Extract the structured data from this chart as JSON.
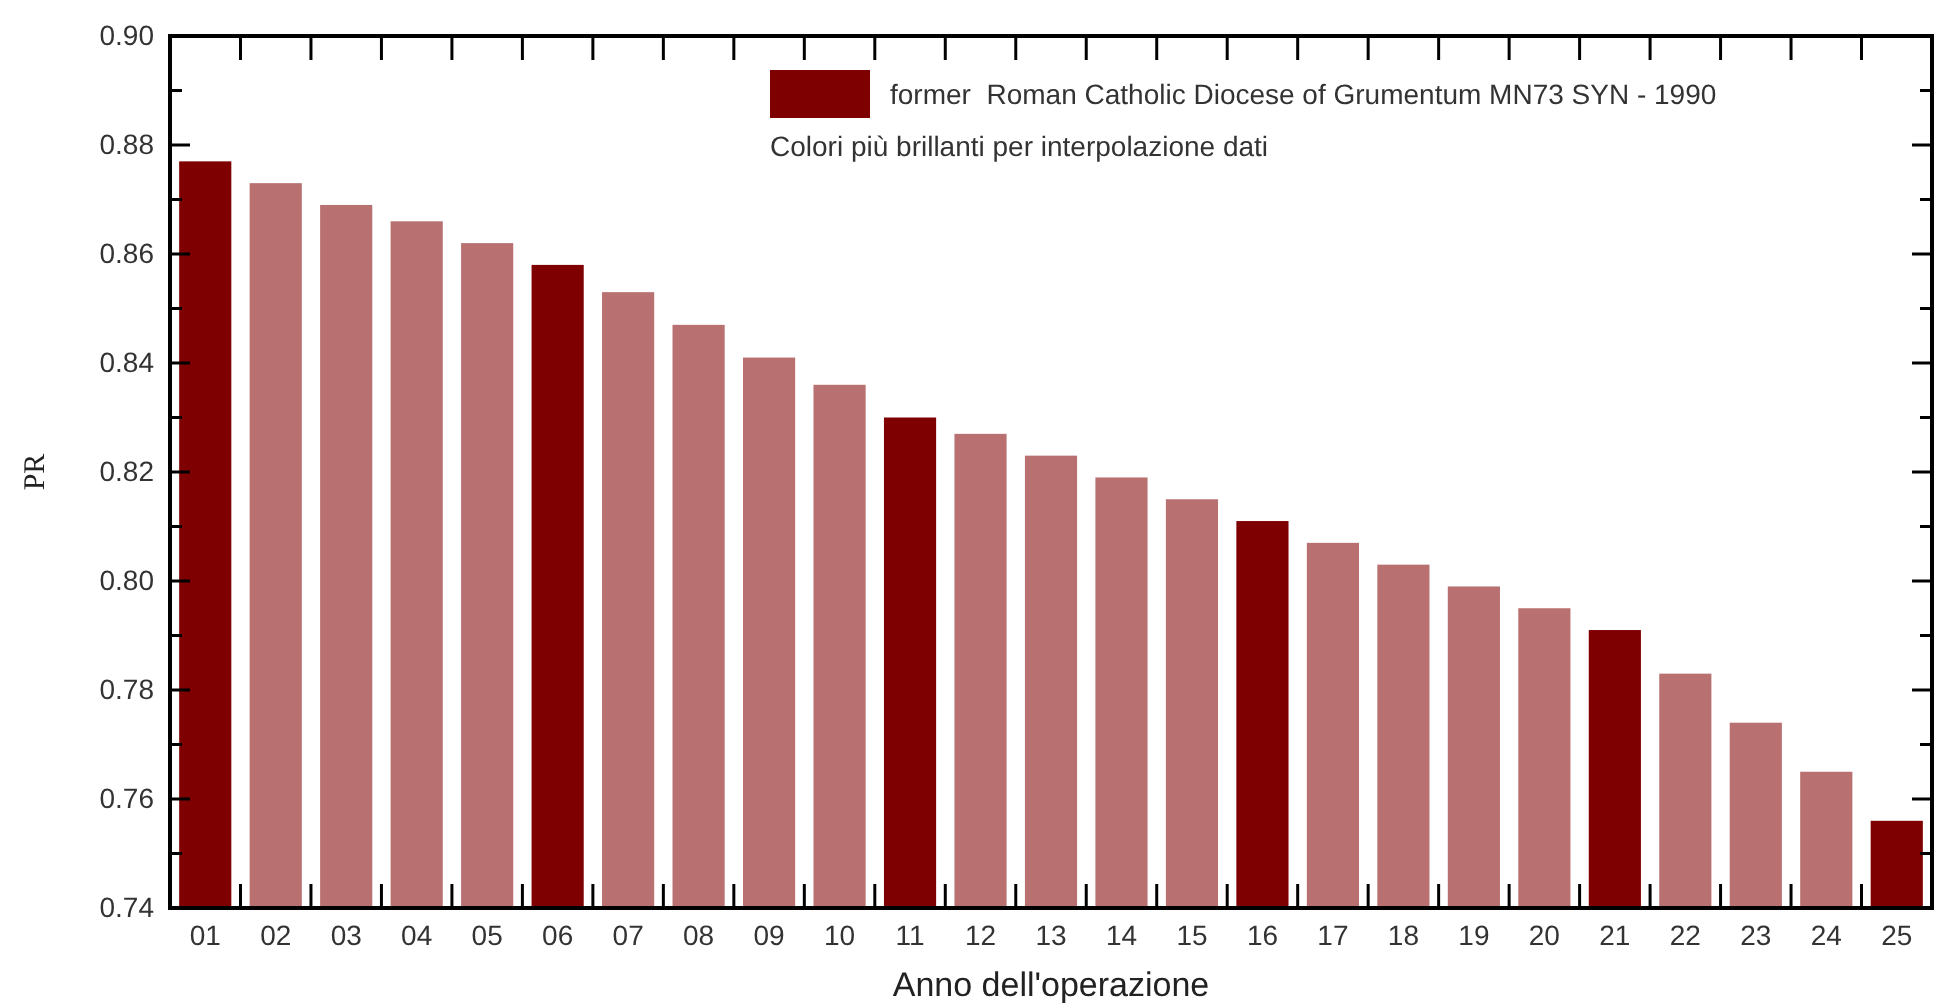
{
  "chart_data": {
    "type": "bar",
    "xlabel": "Anno dell'operazione",
    "ylabel": "PR",
    "categories": [
      "01",
      "02",
      "03",
      "04",
      "05",
      "06",
      "07",
      "08",
      "09",
      "10",
      "11",
      "12",
      "13",
      "14",
      "15",
      "16",
      "17",
      "18",
      "19",
      "20",
      "21",
      "22",
      "23",
      "24",
      "25"
    ],
    "series": [
      {
        "name": "former  Roman Catholic Diocese of Grumentum MN73 SYN - 1990",
        "color": "#7f0000",
        "values": [
          0.877,
          null,
          null,
          null,
          null,
          0.858,
          null,
          null,
          null,
          null,
          0.83,
          null,
          null,
          null,
          null,
          0.811,
          null,
          null,
          null,
          null,
          0.791,
          null,
          null,
          null,
          0.756
        ]
      },
      {
        "color": "#b87070",
        "values": [
          null,
          0.873,
          0.869,
          0.866,
          0.862,
          null,
          0.853,
          0.847,
          0.841,
          0.836,
          null,
          0.827,
          0.823,
          0.819,
          0.815,
          null,
          0.807,
          0.803,
          0.799,
          0.795,
          null,
          0.783,
          0.774,
          0.765,
          null
        ]
      }
    ],
    "ylim": [
      0.74,
      0.9
    ],
    "yticks": [
      {
        "value": 0.74,
        "label": "0.74"
      },
      {
        "value": 0.75,
        "label": null
      },
      {
        "value": 0.76,
        "label": "0.76"
      },
      {
        "value": 0.77,
        "label": null
      },
      {
        "value": 0.78,
        "label": "0.78"
      },
      {
        "value": 0.79,
        "label": null
      },
      {
        "value": 0.8,
        "label": "0.80"
      },
      {
        "value": 0.81,
        "label": null
      },
      {
        "value": 0.82,
        "label": "0.82"
      },
      {
        "value": 0.83,
        "label": null
      },
      {
        "value": 0.84,
        "label": "0.84"
      },
      {
        "value": 0.85,
        "label": null
      },
      {
        "value": 0.86,
        "label": "0.86"
      },
      {
        "value": 0.87,
        "label": null
      },
      {
        "value": 0.88,
        "label": "0.88"
      },
      {
        "value": 0.89,
        "label": null
      },
      {
        "value": 0.9,
        "label": "0.90"
      }
    ],
    "legend": "top right",
    "annotations": [
      "Colori più brillanti per interpolazione dati"
    ]
  }
}
